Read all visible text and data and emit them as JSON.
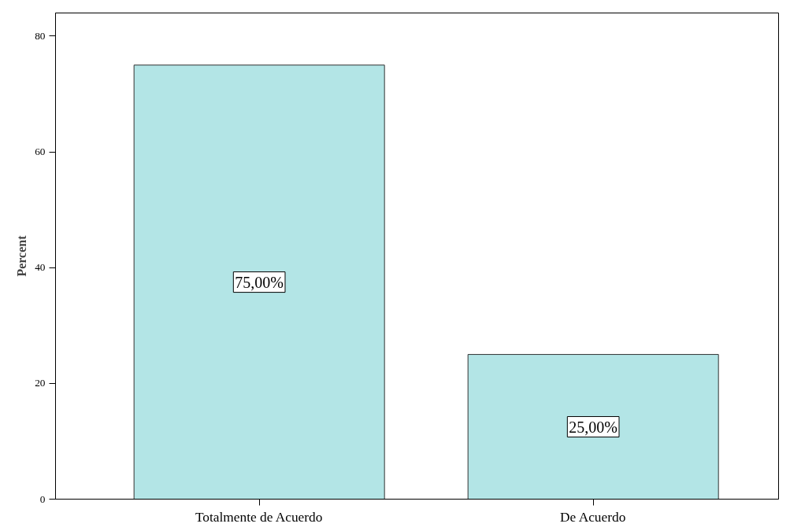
{
  "chart_data": {
    "type": "bar",
    "ylabel": "Percent",
    "categories": [
      "Totalmente de Acuerdo",
      "De Acuerdo"
    ],
    "values": [
      75,
      25
    ],
    "value_labels": [
      "75,00%",
      "25,00%"
    ],
    "color": "#b3e5e6",
    "ylim": [
      0,
      84
    ],
    "yticks": [
      0,
      20,
      40,
      60,
      80
    ],
    "grid": false
  }
}
